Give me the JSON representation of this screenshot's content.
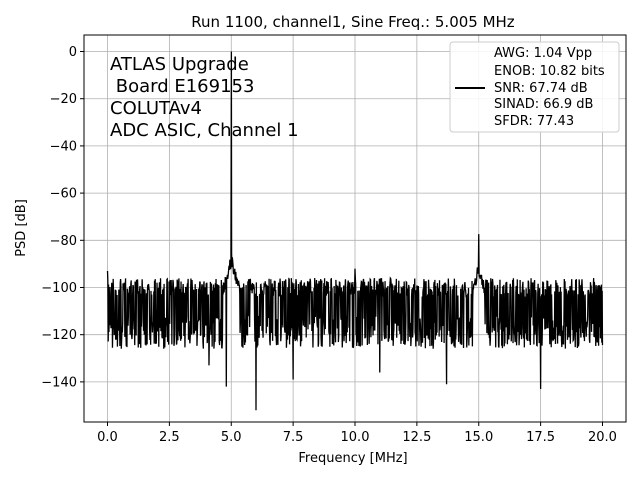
{
  "chart_data": {
    "type": "line",
    "title": "Run 1100, channel1, Sine Freq.: 5.005 MHz",
    "xlabel": "Frequency [MHz]",
    "ylabel": "PSD [dB]",
    "xlim": [
      -0.95,
      20.95
    ],
    "ylim": [
      -157,
      7
    ],
    "xticks": [
      0.0,
      2.5,
      5.0,
      7.5,
      10.0,
      12.5,
      15.0,
      17.5,
      20.0
    ],
    "xtick_labels": [
      "0.0",
      "2.5",
      "5.0",
      "7.5",
      "10.0",
      "12.5",
      "15.0",
      "17.5",
      "20.0"
    ],
    "yticks": [
      0,
      -20,
      -40,
      -60,
      -80,
      -100,
      -120,
      -140
    ],
    "ytick_labels": [
      "0",
      "−20",
      "−40",
      "−60",
      "−80",
      "−100",
      "−120",
      "−140"
    ],
    "grid": true,
    "annotation": [
      "ATLAS Upgrade",
      " Board E169153",
      "COLUTAv4",
      "ADC ASIC, Channel 1"
    ],
    "legend": {
      "placement": "top-right",
      "entries": [
        "AWG: 1.04 Vpp",
        "ENOB: 10.82 bits",
        "SNR: 67.74 dB",
        "SINAD: 66.9 dB",
        "SFDR: 77.43"
      ]
    },
    "series": [
      {
        "color": "#000000",
        "fundamental": {
          "x": 5.005,
          "y": 0
        },
        "noise_floor": {
          "center": -108,
          "band_low": -122,
          "band_high": -96
        },
        "peaks": [
          {
            "x": 5.005,
            "y": 0
          },
          {
            "x": 15.0,
            "y": -77.4
          },
          {
            "x": 10.0,
            "y": -92
          },
          {
            "x": 0.0,
            "y": -93
          }
        ],
        "dips": [
          {
            "x": 4.8,
            "y": -142
          },
          {
            "x": 6.0,
            "y": -152
          },
          {
            "x": 7.5,
            "y": -139
          },
          {
            "x": 4.1,
            "y": -133
          },
          {
            "x": 11.0,
            "y": -136
          },
          {
            "x": 13.7,
            "y": -141
          },
          {
            "x": 17.5,
            "y": -143
          }
        ],
        "x_range": [
          0.0,
          20.0
        ]
      }
    ]
  }
}
